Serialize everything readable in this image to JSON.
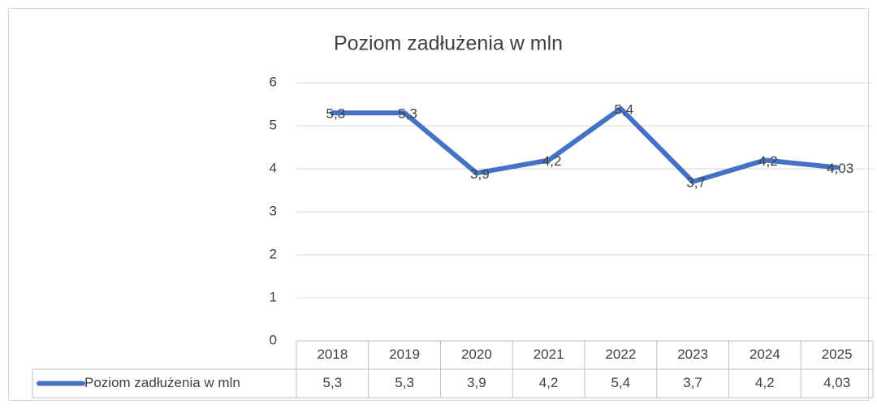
{
  "chart_data": {
    "type": "line",
    "title": "Poziom zadłużenia w mln",
    "categories": [
      "2018",
      "2019",
      "2020",
      "2021",
      "2022",
      "2023",
      "2024",
      "2025"
    ],
    "series": [
      {
        "name": "Poziom zadłużenia w mln",
        "color": "#4472c4",
        "values": [
          5.3,
          5.3,
          3.9,
          4.2,
          5.4,
          3.7,
          4.2,
          4.03
        ],
        "value_labels": [
          "5,3",
          "5,3",
          "3,9",
          "4,2",
          "5,4",
          "3,7",
          "4,2",
          "4,03"
        ]
      }
    ],
    "ylim": [
      0,
      6
    ],
    "yticks": [
      0,
      1,
      2,
      3,
      4,
      5,
      6
    ],
    "grid": true,
    "data_table": true
  }
}
